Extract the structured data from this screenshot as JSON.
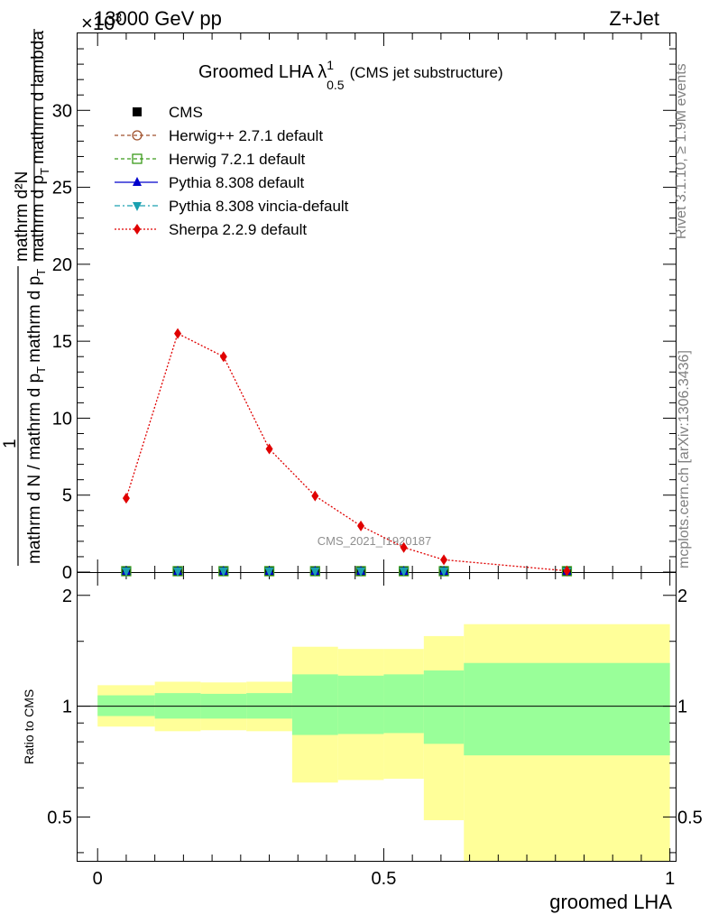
{
  "header": {
    "left": "13000 GeV pp",
    "right": "Z+Jet",
    "exponent": "×10",
    "exponent_power": "3"
  },
  "title": {
    "main": "Groomed LHA λ",
    "sup": "1",
    "sub": "0.5",
    "suffix": "(CMS jet substructure)"
  },
  "side_text": {
    "rivet": "Rivet 3.1.10, ≥ 1.9M events",
    "mcplots": "mcplots.cern.ch [arXiv:1306.3436]"
  },
  "watermark": "CMS_2021_I1920187",
  "y_label": {
    "numer": "mathrm d²N",
    "denom_mid": "mathrm d p",
    "denom_mid_sub": "T",
    "denom_tail": "mathrm d lambda",
    "one": "1",
    "lower": "mathrm d N / mathrm d p",
    "lower_sub": "T",
    "lower_tail": "mathrm d p",
    "lower_sub2": "T"
  },
  "x_label": "groomed LHA",
  "ratio_label": "Ratio to CMS",
  "legend": [
    {
      "name": "CMS",
      "color": "#000000",
      "marker": "square-filled",
      "line": "none"
    },
    {
      "name": "Herwig++ 2.7.1 default",
      "color": "#a0522d",
      "marker": "circle-open",
      "line": "dashed"
    },
    {
      "name": "Herwig 7.2.1 default",
      "color": "#3a9a1a",
      "marker": "square-open",
      "line": "dashed"
    },
    {
      "name": "Pythia 8.308 default",
      "color": "#0000cc",
      "marker": "triangle-up",
      "line": "solid"
    },
    {
      "name": "Pythia 8.308 vincia-default",
      "color": "#1aa0b0",
      "marker": "triangle-down",
      "line": "dashdot"
    },
    {
      "name": "Sherpa 2.2.9 default",
      "color": "#e00000",
      "marker": "diamond",
      "line": "dotted"
    }
  ],
  "chart_data": {
    "type": "line",
    "xlim": [
      -0.035,
      1.01
    ],
    "ylim": [
      0,
      35000
    ],
    "x_ticks": [
      0,
      0.5,
      1
    ],
    "x_tick_labels": [
      "0",
      "0.5",
      "1"
    ],
    "y_ticks": [
      0,
      5000,
      10000,
      15000,
      20000,
      25000,
      30000
    ],
    "y_tick_labels": [
      "0",
      "5",
      "10",
      "15",
      "20",
      "25",
      "30"
    ],
    "bin_edges": [
      0,
      0.1,
      0.18,
      0.26,
      0.34,
      0.42,
      0.5,
      0.57,
      0.64,
      1.0
    ],
    "series": [
      {
        "name": "Sherpa 2.2.9 default",
        "x": [
          0.05,
          0.14,
          0.22,
          0.3,
          0.38,
          0.46,
          0.535,
          0.605,
          0.82
        ],
        "y": [
          4800,
          15500,
          14000,
          8000,
          4950,
          3000,
          1600,
          800,
          80
        ]
      },
      {
        "name": "CMS",
        "x": [
          0.05,
          0.14,
          0.22,
          0.3,
          0.38,
          0.46,
          0.535,
          0.605,
          0.82
        ],
        "y": [
          0,
          0,
          0,
          0,
          0,
          0,
          0,
          0,
          0
        ]
      }
    ],
    "ratio": {
      "ylim": [
        0.38,
        2.3
      ],
      "y_ticks": [
        0.5,
        1,
        2
      ],
      "y_tick_labels": [
        "0.5",
        "1",
        "2"
      ],
      "stat_band": [
        {
          "lo": 0.94,
          "hi": 1.07
        },
        {
          "lo": 0.925,
          "hi": 1.085
        },
        {
          "lo": 0.925,
          "hi": 1.08
        },
        {
          "lo": 0.925,
          "hi": 1.085
        },
        {
          "lo": 0.835,
          "hi": 1.22
        },
        {
          "lo": 0.84,
          "hi": 1.21
        },
        {
          "lo": 0.845,
          "hi": 1.22
        },
        {
          "lo": 0.79,
          "hi": 1.25
        },
        {
          "lo": 0.735,
          "hi": 1.31
        }
      ],
      "total_band": [
        {
          "lo": 0.88,
          "hi": 1.14
        },
        {
          "lo": 0.855,
          "hi": 1.165
        },
        {
          "lo": 0.86,
          "hi": 1.16
        },
        {
          "lo": 0.855,
          "hi": 1.165
        },
        {
          "lo": 0.62,
          "hi": 1.45
        },
        {
          "lo": 0.63,
          "hi": 1.43
        },
        {
          "lo": 0.635,
          "hi": 1.43
        },
        {
          "lo": 0.49,
          "hi": 1.55
        },
        {
          "lo": 0.38,
          "hi": 1.67
        }
      ]
    }
  }
}
